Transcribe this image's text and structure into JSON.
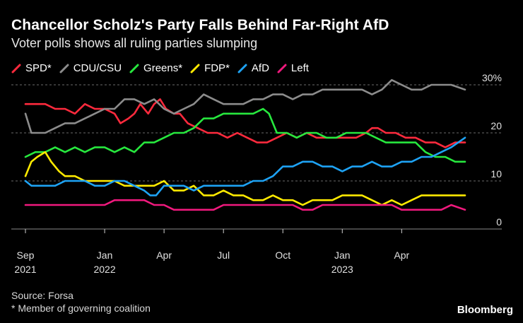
{
  "title": "Chancellor Scholz's Party Falls Behind Far-Right AfD",
  "subtitle": "Voter polls shows all ruling parties slumping",
  "source": "Source: Forsa",
  "footnote": "* Member of governing coalition",
  "brand": "Bloomberg",
  "chart_data": {
    "type": "line",
    "title": "Chancellor Scholz's Party Falls Behind Far-Right AfD",
    "xlabel": "",
    "ylabel": "%",
    "ylim": [
      0,
      30
    ],
    "y_ticks": [
      {
        "value": 30,
        "label": "30%"
      },
      {
        "value": 20,
        "label": "20"
      },
      {
        "value": 10,
        "label": "10"
      },
      {
        "value": 0,
        "label": "0"
      }
    ],
    "x_range": [
      0,
      22.2
    ],
    "x_unit": "months since Sep 2021",
    "x_ticks": [
      {
        "value": 0,
        "label": "Sep",
        "sub": "2021"
      },
      {
        "value": 4,
        "label": "Jan",
        "sub": "2022"
      },
      {
        "value": 7,
        "label": "Apr",
        "sub": ""
      },
      {
        "value": 10,
        "label": "Jul",
        "sub": ""
      },
      {
        "value": 13,
        "label": "Oct",
        "sub": ""
      },
      {
        "value": 16,
        "label": "Jan",
        "sub": "2023"
      },
      {
        "value": 19,
        "label": "Apr",
        "sub": ""
      }
    ],
    "grid": true,
    "legend": "top-left",
    "series": [
      {
        "name": "SPD*",
        "color": "#ff2a3d",
        "x": [
          0,
          0.5,
          1,
          1.5,
          2,
          2.5,
          3,
          3.5,
          4,
          4.5,
          4.8,
          5.2,
          5.5,
          5.8,
          6.2,
          6.5,
          6.8,
          7.1,
          7.5,
          7.8,
          8.2,
          8.7,
          9.2,
          9.7,
          10.2,
          10.7,
          11.2,
          11.7,
          12.2,
          12.7,
          13.2,
          13.7,
          14.2,
          14.7,
          15.2,
          15.7,
          16.2,
          16.7,
          17.2,
          17.5,
          17.8,
          18.2,
          18.7,
          19.2,
          19.7,
          20.2,
          20.7,
          21.2,
          21.7,
          22.2
        ],
        "values": [
          26,
          26,
          26,
          25,
          25,
          24,
          26,
          25,
          25,
          24,
          22,
          23,
          24,
          26,
          24,
          26,
          27,
          25,
          24,
          24,
          22,
          21,
          20,
          20,
          19,
          20,
          19,
          18,
          18,
          19,
          20,
          19,
          20,
          19,
          19,
          19,
          19,
          19,
          20,
          21,
          21,
          20,
          20,
          19,
          19,
          18,
          18,
          17,
          18,
          18
        ]
      },
      {
        "name": "CDU/CSU",
        "color": "#8c8c8c",
        "x": [
          0,
          0.3,
          1,
          1.5,
          2,
          2.5,
          3,
          3.5,
          4,
          4.5,
          5,
          5.5,
          6,
          6.5,
          7,
          7.5,
          8,
          8.5,
          9,
          9.5,
          10,
          10.5,
          11,
          11.5,
          12,
          12.5,
          13,
          13.5,
          14,
          14.5,
          15,
          15.5,
          16,
          16.5,
          17,
          17.5,
          18,
          18.5,
          19,
          19.5,
          20,
          20.5,
          21,
          21.5,
          22.2
        ],
        "values": [
          24,
          20,
          20,
          21,
          22,
          22,
          23,
          24,
          25,
          25,
          27,
          27,
          26,
          27,
          25,
          24,
          25,
          26,
          28,
          27,
          26,
          26,
          26,
          27,
          27,
          28,
          28,
          27,
          28,
          28,
          29,
          29,
          29,
          29,
          29,
          28,
          29,
          31,
          30,
          29,
          29,
          30,
          30,
          30,
          29
        ]
      },
      {
        "name": "Greens*",
        "color": "#27e83e",
        "x": [
          0,
          0.5,
          1,
          1.5,
          2,
          2.5,
          3,
          3.5,
          4,
          4.5,
          5,
          5.5,
          6,
          6.5,
          7,
          7.5,
          8,
          8.5,
          9,
          9.5,
          10,
          10.5,
          11,
          11.5,
          12,
          12.3,
          12.7,
          13.2,
          13.7,
          14.2,
          14.7,
          15.2,
          15.7,
          16.2,
          16.7,
          17.2,
          17.7,
          18.2,
          18.7,
          19.2,
          19.7,
          20.2,
          20.7,
          21.2,
          21.7,
          22.2
        ],
        "values": [
          15,
          16,
          16,
          17,
          16,
          17,
          16,
          17,
          17,
          16,
          17,
          16,
          18,
          18,
          19,
          20,
          20,
          21,
          23,
          23,
          24,
          24,
          24,
          24,
          25,
          24,
          20,
          20,
          19,
          20,
          20,
          19,
          19,
          20,
          20,
          20,
          19,
          18,
          18,
          18,
          18,
          16,
          15,
          15,
          14,
          14
        ]
      },
      {
        "name": "FDP*",
        "color": "#ffea00",
        "x": [
          0,
          0.3,
          0.6,
          1,
          1.3,
          1.7,
          2,
          2.5,
          3,
          3.5,
          4,
          4.5,
          5,
          5.5,
          6,
          6.5,
          7,
          7.5,
          8,
          8.5,
          9,
          9.5,
          10,
          10.5,
          11,
          11.5,
          12,
          12.5,
          13,
          13.5,
          14,
          14.5,
          15,
          15.5,
          16,
          16.5,
          17,
          17.5,
          18,
          18.5,
          19,
          19.5,
          20,
          20.5,
          21,
          21.5,
          22.2
        ],
        "values": [
          11,
          14,
          15,
          16,
          14,
          12,
          11,
          11,
          10,
          10,
          10,
          10,
          9,
          9,
          9,
          9,
          10,
          8,
          8,
          9,
          7,
          7,
          8,
          7,
          7,
          6,
          6,
          7,
          6,
          6,
          5,
          6,
          6,
          6,
          7,
          7,
          7,
          6,
          5,
          6,
          5,
          6,
          7,
          7,
          7,
          7,
          7
        ]
      },
      {
        "name": "AfD",
        "color": "#1ea3f5",
        "x": [
          0,
          0.3,
          1,
          1.5,
          2,
          2.5,
          3,
          3.5,
          4,
          4.5,
          5,
          5.5,
          6,
          6.3,
          6.6,
          7,
          7.5,
          8,
          8.5,
          9,
          9.5,
          10,
          10.5,
          11,
          11.5,
          12,
          12.5,
          13,
          13.5,
          14,
          14.5,
          15,
          15.5,
          16,
          16.5,
          17,
          17.5,
          18,
          18.5,
          19,
          19.5,
          20,
          20.5,
          21,
          21.5,
          22.2
        ],
        "values": [
          10,
          9,
          9,
          9,
          10,
          10,
          10,
          9,
          9,
          10,
          10,
          9,
          8,
          7,
          7,
          9,
          9,
          9,
          8,
          9,
          9,
          9,
          9,
          9,
          10,
          10,
          11,
          13,
          13,
          14,
          14,
          13,
          13,
          12,
          13,
          13,
          14,
          13,
          13,
          14,
          14,
          15,
          15,
          16,
          17,
          19
        ]
      },
      {
        "name": "Left",
        "color": "#f0197d",
        "x": [
          0,
          0.5,
          1,
          1.5,
          2,
          2.5,
          3,
          3.5,
          4,
          4.5,
          5,
          5.5,
          6,
          6.5,
          7,
          7.5,
          8,
          8.5,
          9,
          9.5,
          10,
          10.5,
          11,
          11.5,
          12,
          12.5,
          13,
          13.5,
          14,
          14.5,
          15,
          15.5,
          16,
          16.5,
          17,
          17.5,
          18,
          18.5,
          19,
          19.5,
          20,
          20.5,
          21,
          21.5,
          22.2
        ],
        "values": [
          5,
          5,
          5,
          5,
          5,
          5,
          5,
          5,
          5,
          6,
          6,
          6,
          6,
          5,
          5,
          4,
          4,
          4,
          4,
          4,
          5,
          5,
          5,
          5,
          5,
          5,
          5,
          5,
          4,
          4,
          5,
          5,
          5,
          5,
          5,
          5,
          5,
          5,
          4,
          4,
          4,
          4,
          4,
          5,
          4
        ]
      }
    ]
  }
}
